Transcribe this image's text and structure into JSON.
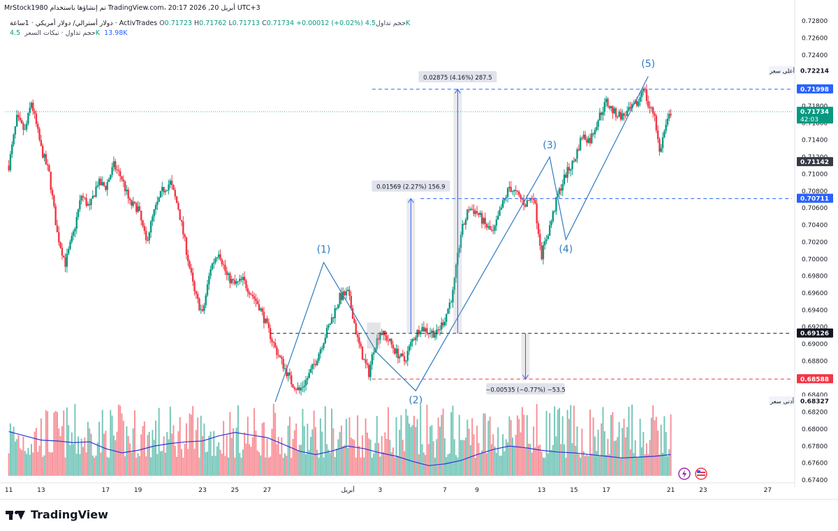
{
  "header": {
    "line1": "MrStock1980 تم إنشاؤها باستخدام TradingView.com، 20:17 2026 ,20 أبريل UTC+3",
    "symbol": "دولار أسترالي/ دولار أمريكي · 1ساعة · ActivTrades",
    "ohlc": {
      "o_label": "O",
      "o": "0.71723",
      "h_label": "H",
      "h": "0.71762",
      "l_label": "L",
      "l": "0.71713",
      "c_label": "C",
      "c": "0.71734",
      "change": "+0.00012 (+0.02%)"
    },
    "volume_label": "حجم تداول",
    "volume_value": "4.5K",
    "line3_label": "حجم تداول · تيكات السعر",
    "line3_v1": "4.5K",
    "line3_v2": "13.98K"
  },
  "logo": {
    "text": "TradingView"
  },
  "colors": {
    "up": "#089981",
    "down": "#f23645",
    "wave": "#2f7bbf",
    "volume_ma": "#2f35d6",
    "measure": "#2962ff",
    "axis_text": "#131722",
    "dashed_blue": "#2962ff",
    "dashed_black": "#131722",
    "dashed_red": "#f23645"
  },
  "chart_data": {
    "type": "candlestick",
    "symbol": "دولار أسترالي/ دولار أمريكي",
    "timeframe": "1ساعة",
    "ylim": [
      0.674,
      0.729
    ],
    "y_ticks": [
      "0.72800",
      "0.72600",
      "0.72400",
      "0.72200",
      "0.72000",
      "0.71800",
      "0.71600",
      "0.71400",
      "0.71200",
      "0.71000",
      "0.70800",
      "0.70600",
      "0.70400",
      "0.70200",
      "0.70000",
      "0.69800",
      "0.69600",
      "0.69400",
      "0.69200",
      "0.69000",
      "0.68800",
      "0.68600",
      "0.68400",
      "0.68200",
      "0.68000",
      "0.67800",
      "0.67600",
      "0.67400"
    ],
    "x_ticks": [
      {
        "label": "11",
        "day": 0
      },
      {
        "label": "13",
        "day": 2
      },
      {
        "label": "17",
        "day": 6
      },
      {
        "label": "19",
        "day": 8
      },
      {
        "label": "23",
        "day": 12
      },
      {
        "label": "25",
        "day": 14
      },
      {
        "label": "27",
        "day": 16
      },
      {
        "label": "أبريل",
        "day": 21
      },
      {
        "label": "3",
        "day": 23
      },
      {
        "label": "7",
        "day": 27
      },
      {
        "label": "9",
        "day": 29
      },
      {
        "label": "13",
        "day": 33
      },
      {
        "label": "15",
        "day": 35
      },
      {
        "label": "17",
        "day": 37
      },
      {
        "label": "21",
        "day": 41
      },
      {
        "label": "23",
        "day": 43
      },
      {
        "label": "27",
        "day": 47
      }
    ],
    "day_range": [
      -0.2,
      48.5
    ],
    "price_path": [
      [
        0,
        0.711
      ],
      [
        0.5,
        0.7165
      ],
      [
        1,
        0.715
      ],
      [
        1.4,
        0.7185
      ],
      [
        2,
        0.713
      ],
      [
        2.5,
        0.71
      ],
      [
        3,
        0.703
      ],
      [
        3.5,
        0.6995
      ],
      [
        4,
        0.703
      ],
      [
        4.5,
        0.7075
      ],
      [
        5,
        0.706
      ],
      [
        5.5,
        0.709
      ],
      [
        6,
        0.7085
      ],
      [
        6.5,
        0.711
      ],
      [
        7,
        0.7095
      ],
      [
        7.5,
        0.7065
      ],
      [
        8,
        0.706
      ],
      [
        8.5,
        0.702
      ],
      [
        9,
        0.7055
      ],
      [
        9.5,
        0.708
      ],
      [
        10,
        0.709
      ],
      [
        10.5,
        0.706
      ],
      [
        11,
        0.701
      ],
      [
        11.5,
        0.696
      ],
      [
        12,
        0.6935
      ],
      [
        12.5,
        0.699
      ],
      [
        13,
        0.701
      ],
      [
        13.5,
        0.698
      ],
      [
        14,
        0.697
      ],
      [
        14.5,
        0.6975
      ],
      [
        15,
        0.696
      ],
      [
        15.5,
        0.6945
      ],
      [
        16,
        0.692
      ],
      [
        16.5,
        0.6895
      ],
      [
        17,
        0.6875
      ],
      [
        17.5,
        0.6855
      ],
      [
        18,
        0.6845
      ],
      [
        18.5,
        0.686
      ],
      [
        19,
        0.688
      ],
      [
        19.5,
        0.6905
      ],
      [
        20,
        0.693
      ],
      [
        20.5,
        0.6955
      ],
      [
        21,
        0.696
      ],
      [
        21.3,
        0.6935
      ],
      [
        21.6,
        0.6905
      ],
      [
        22,
        0.688
      ],
      [
        22.3,
        0.6866
      ],
      [
        22.6,
        0.6895
      ],
      [
        23,
        0.6915
      ],
      [
        23.5,
        0.6905
      ],
      [
        24,
        0.689
      ],
      [
        24.5,
        0.688
      ],
      [
        25,
        0.6905
      ],
      [
        25.5,
        0.692
      ],
      [
        26,
        0.6915
      ],
      [
        26.5,
        0.6912
      ],
      [
        27,
        0.693
      ],
      [
        27.5,
        0.696
      ],
      [
        28,
        0.703
      ],
      [
        28.5,
        0.706
      ],
      [
        29,
        0.7055
      ],
      [
        29.5,
        0.704
      ],
      [
        30,
        0.703
      ],
      [
        30.5,
        0.706
      ],
      [
        31,
        0.7085
      ],
      [
        31.5,
        0.7075
      ],
      [
        32,
        0.7065
      ],
      [
        32.5,
        0.7075
      ],
      [
        33,
        0.7005
      ],
      [
        33.3,
        0.7025
      ],
      [
        33.6,
        0.7045
      ],
      [
        34,
        0.7075
      ],
      [
        34.5,
        0.71
      ],
      [
        35,
        0.7115
      ],
      [
        35.5,
        0.7145
      ],
      [
        36,
        0.714
      ],
      [
        36.5,
        0.7165
      ],
      [
        37,
        0.7185
      ],
      [
        37.5,
        0.7172
      ],
      [
        38,
        0.7168
      ],
      [
        38.5,
        0.7175
      ],
      [
        39,
        0.7185
      ],
      [
        39.3,
        0.7205
      ],
      [
        39.6,
        0.718
      ],
      [
        40,
        0.717
      ],
      [
        40.3,
        0.7125
      ],
      [
        40.6,
        0.715
      ],
      [
        41,
        0.7173
      ]
    ],
    "waves": {
      "lines": [
        [
          [
            16.5,
            0.6832
          ],
          [
            19.5,
            0.6996
          ],
          [
            22.8,
            0.689
          ],
          [
            25.2,
            0.6845
          ],
          [
            33.5,
            0.712
          ],
          [
            34.5,
            0.7023
          ],
          [
            39.6,
            0.7215
          ]
        ]
      ],
      "labels": [
        {
          "text": "(1)",
          "day": 19.5,
          "price": 0.70025,
          "pos": "above"
        },
        {
          "text": "(2)",
          "day": 25.2,
          "price": 0.6845,
          "pos": "below"
        },
        {
          "text": "(3)",
          "day": 33.5,
          "price": 0.71255,
          "pos": "above"
        },
        {
          "text": "(4)",
          "day": 34.5,
          "price": 0.7023,
          "pos": "below"
        },
        {
          "text": "(5)",
          "day": 39.6,
          "price": 0.7221,
          "pos": "above"
        }
      ]
    },
    "horizontal_lines": [
      {
        "price": 0.71998,
        "style": "dashed",
        "color": "#2962ff",
        "from_day": 22.5
      },
      {
        "price": 0.70711,
        "style": "dashed",
        "color": "#2962ff",
        "from_day": 25.5
      },
      {
        "price": 0.69126,
        "style": "dashed",
        "color": "#131722",
        "from_day": 16.2
      },
      {
        "price": 0.68588,
        "style": "dashed",
        "color": "#f23645",
        "from_day": 22.5
      },
      {
        "price": 0.71734,
        "style": "dotted",
        "color": "#089981",
        "from_day": -0.2
      }
    ],
    "measures": [
      {
        "label": "0.01569 (2.27%) 156.9",
        "day": 24.9,
        "from": 0.69126,
        "to": 0.70711,
        "direction": "up"
      },
      {
        "label": "0.02875 (4.16%) 287.5",
        "day": 27.8,
        "from": 0.69126,
        "to": 0.71998,
        "direction": "up"
      },
      {
        "label": "−0.00535 (−0.77%) −53.5",
        "day": 32.0,
        "from": 0.69126,
        "to": 0.68588,
        "direction": "down"
      }
    ],
    "highlight_box": {
      "day_from": 22.2,
      "day_to": 23.0,
      "price_from": 0.6895,
      "price_to": 0.6925
    },
    "price_labels": [
      {
        "price": 0.72214,
        "text": "0.72214",
        "caption": "أعلى سعر",
        "style": "plain"
      },
      {
        "price": 0.71998,
        "text": "0.71998",
        "style": "blue"
      },
      {
        "price": 0.71734,
        "text": "0.71734",
        "subtext": "42:03",
        "style": "green"
      },
      {
        "price": 0.71142,
        "text": "0.71142",
        "style": "dark"
      },
      {
        "price": 0.70711,
        "text": "0.70711",
        "style": "blue"
      },
      {
        "price": 0.69126,
        "text": "0.69126",
        "style": "black"
      },
      {
        "price": 0.68588,
        "text": "0.68588",
        "style": "red"
      },
      {
        "price": 0.68327,
        "text": "0.68327",
        "caption": "أدنى سعر",
        "style": "plain"
      }
    ],
    "volume": {
      "base_price": 0.6745,
      "max_height_price": 0.0085,
      "ma_path": [
        [
          0,
          0.6797
        ],
        [
          1,
          0.6792
        ],
        [
          2,
          0.6787
        ],
        [
          3,
          0.6786
        ],
        [
          4,
          0.6784
        ],
        [
          5,
          0.6785
        ],
        [
          6,
          0.6777
        ],
        [
          7,
          0.6772
        ],
        [
          8,
          0.6775
        ],
        [
          9,
          0.678
        ],
        [
          10,
          0.6783
        ],
        [
          11,
          0.6785
        ],
        [
          12,
          0.6786
        ],
        [
          13,
          0.6792
        ],
        [
          14,
          0.6796
        ],
        [
          15,
          0.6793
        ],
        [
          16,
          0.679
        ],
        [
          17,
          0.6782
        ],
        [
          18,
          0.6774
        ],
        [
          19,
          0.677
        ],
        [
          20,
          0.6774
        ],
        [
          21,
          0.678
        ],
        [
          22,
          0.6777
        ],
        [
          23,
          0.6772
        ],
        [
          24,
          0.6768
        ],
        [
          25,
          0.6762
        ],
        [
          26,
          0.6757
        ],
        [
          27,
          0.6759
        ],
        [
          28,
          0.6763
        ],
        [
          29,
          0.677
        ],
        [
          30,
          0.6776
        ],
        [
          31,
          0.678
        ],
        [
          32,
          0.6778
        ],
        [
          33,
          0.6775
        ],
        [
          34,
          0.6773
        ],
        [
          35,
          0.6772
        ],
        [
          36,
          0.677
        ],
        [
          37,
          0.6768
        ],
        [
          38,
          0.6766
        ],
        [
          39,
          0.6767
        ],
        [
          40,
          0.6768
        ],
        [
          41,
          0.677
        ]
      ]
    }
  }
}
